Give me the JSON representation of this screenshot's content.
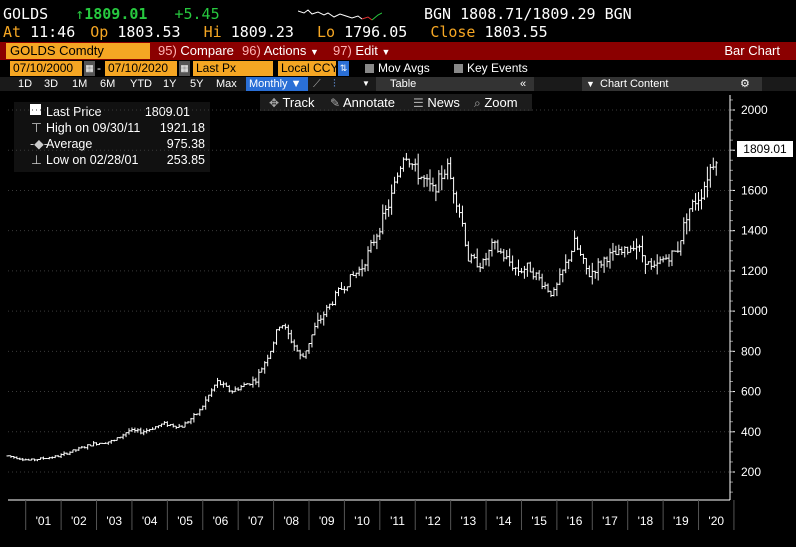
{
  "quote": {
    "ticker": "GOLDS",
    "arrow": "↑",
    "last": "1809.01",
    "change": "+5.45",
    "bid_ask_label": "BGN",
    "bid_ask": "1808.71/1809.29",
    "bid_ask_label2": "BGN",
    "at_label": "At",
    "time": "11:46",
    "open_label": "Op",
    "open": "1803.53",
    "high_label": "Hi",
    "high": "1809.23",
    "low_label": "Lo",
    "low": "1796.05",
    "close_label": "Close",
    "close": "1803.55"
  },
  "command": {
    "security": "GOLDS Comdty",
    "compare_num": "95)",
    "compare": "Compare",
    "actions_num": "96)",
    "actions": "Actions",
    "edit_num": "97)",
    "edit": "Edit",
    "chart_type": "Bar Chart"
  },
  "settings": {
    "start_date": "07/10/2000",
    "dash": "-",
    "end_date": "07/10/2020",
    "field": "Last Px",
    "currency": "Local CCY",
    "mov_avgs": "Mov Avgs",
    "key_events": "Key Events"
  },
  "ranges": [
    "1D",
    "3D",
    "1M",
    "6M",
    "YTD",
    "1Y",
    "5Y",
    "Max"
  ],
  "periodicity": "Monthly ▼",
  "table_label": "Table",
  "chart_content": "Chart Content",
  "toolbar": {
    "track": "Track",
    "annotate": "Annotate",
    "news": "News",
    "zoom": "Zoom"
  },
  "legend": {
    "last_price_label": "Last Price",
    "last_price": "1809.01",
    "high_label": "High on 09/30/11",
    "high": "1921.18",
    "average_label": "Average",
    "average": "975.38",
    "low_label": "Low on 02/28/01",
    "low": "253.85"
  },
  "colors": {
    "amber": "#f5a623",
    "command_bar": "#8b0000",
    "up": "#27c93f",
    "selected_tab": "#2a6fd6"
  },
  "chart_data": {
    "type": "bar",
    "ylim": [
      100,
      2050
    ],
    "y_ticks": [
      "200",
      "400",
      "600",
      "800",
      "1000",
      "1200",
      "1400",
      "1600",
      "1800",
      "2000"
    ],
    "last_value_label": "1809.01",
    "x_ticks": [
      "'01",
      "'02",
      "'03",
      "'04",
      "'05",
      "'06",
      "'07",
      "'08",
      "'09",
      "'10",
      "'11",
      "'12",
      "'13",
      "'14",
      "'15",
      "'16",
      "'17",
      "'18",
      "'19",
      "'20"
    ],
    "x_start_year": 2000.5,
    "x_end_year": 2020.55,
    "anchors": [
      [
        2000.5,
        280
      ],
      [
        2001.1,
        258
      ],
      [
        2001.9,
        278
      ],
      [
        2002.5,
        315
      ],
      [
        2002.9,
        340
      ],
      [
        2003.5,
        355
      ],
      [
        2003.9,
        405
      ],
      [
        2004.3,
        400
      ],
      [
        2004.9,
        440
      ],
      [
        2005.4,
        425
      ],
      [
        2005.9,
        500
      ],
      [
        2006.4,
        650
      ],
      [
        2006.8,
        600
      ],
      [
        2007.5,
        660
      ],
      [
        2007.9,
        800
      ],
      [
        2008.2,
        950
      ],
      [
        2008.8,
        760
      ],
      [
        2009.2,
        930
      ],
      [
        2009.9,
        1110
      ],
      [
        2010.5,
        1220
      ],
      [
        2010.9,
        1380
      ],
      [
        2011.3,
        1550
      ],
      [
        2011.7,
        1800
      ],
      [
        2012.0,
        1700
      ],
      [
        2012.5,
        1600
      ],
      [
        2012.9,
        1720
      ],
      [
        2013.3,
        1470
      ],
      [
        2013.5,
        1260
      ],
      [
        2013.9,
        1230
      ],
      [
        2014.2,
        1330
      ],
      [
        2014.9,
        1200
      ],
      [
        2015.2,
        1220
      ],
      [
        2015.9,
        1080
      ],
      [
        2016.5,
        1340
      ],
      [
        2016.9,
        1180
      ],
      [
        2017.4,
        1270
      ],
      [
        2017.9,
        1290
      ],
      [
        2018.2,
        1340
      ],
      [
        2018.7,
        1200
      ],
      [
        2018.95,
        1250
      ],
      [
        2019.4,
        1300
      ],
      [
        2019.7,
        1500
      ],
      [
        2020.1,
        1590
      ],
      [
        2020.3,
        1700
      ],
      [
        2020.55,
        1790
      ]
    ]
  }
}
